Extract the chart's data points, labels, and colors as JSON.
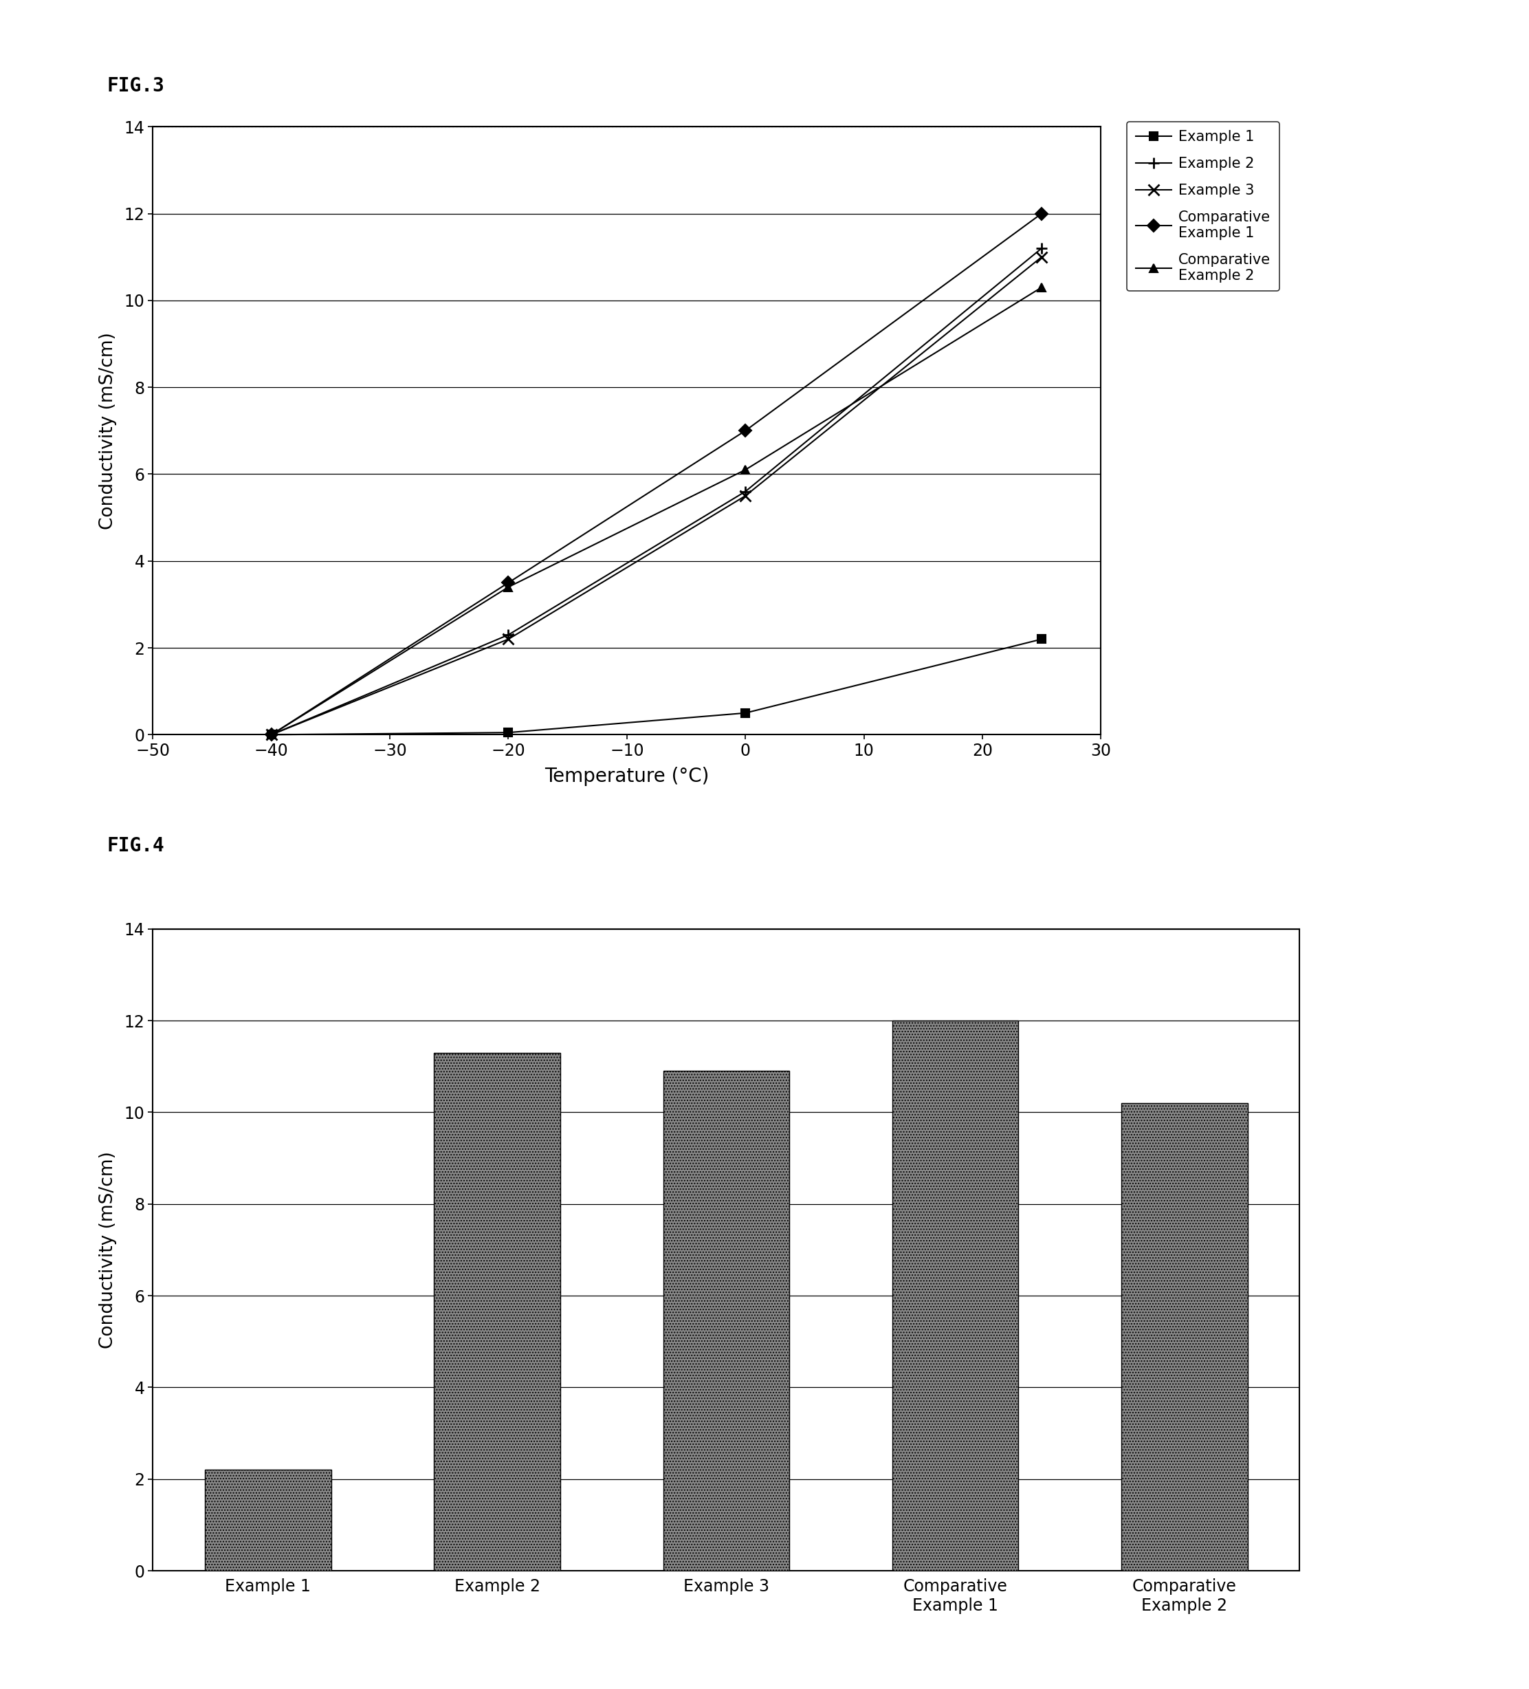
{
  "fig3": {
    "title": "FIG.3",
    "xlabel": "Temperature (°C)",
    "ylabel": "Conductivity (mS/cm)",
    "xlim": [
      -50,
      30
    ],
    "ylim": [
      0,
      14
    ],
    "xticks": [
      -50,
      -40,
      -30,
      -20,
      -10,
      0,
      10,
      20,
      30
    ],
    "yticks": [
      0,
      2,
      4,
      6,
      8,
      10,
      12,
      14
    ],
    "series": [
      {
        "label": "Example 1",
        "x": [
          -40,
          -20,
          0,
          25
        ],
        "y": [
          0,
          0.05,
          0.5,
          2.2
        ],
        "marker": "s",
        "markersize": 8,
        "color": "black",
        "linestyle": "-"
      },
      {
        "label": "Example 2",
        "x": [
          -40,
          -20,
          0,
          25
        ],
        "y": [
          0,
          2.3,
          5.6,
          11.2
        ],
        "marker": "+",
        "markersize": 12,
        "color": "black",
        "linestyle": "-"
      },
      {
        "label": "Example 3",
        "x": [
          -40,
          -20,
          0,
          25
        ],
        "y": [
          0,
          2.2,
          5.5,
          11.0
        ],
        "marker": "x",
        "markersize": 12,
        "color": "black",
        "linestyle": "-"
      },
      {
        "label": "Comparative\nExample 1",
        "x": [
          -40,
          -20,
          0,
          25
        ],
        "y": [
          0,
          3.5,
          7.0,
          12.0
        ],
        "marker": "D",
        "markersize": 9,
        "color": "black",
        "linestyle": "-"
      },
      {
        "label": "Comparative\nExample 2",
        "x": [
          -40,
          -20,
          0,
          25
        ],
        "y": [
          0,
          3.4,
          6.1,
          10.3
        ],
        "marker": "^",
        "markersize": 9,
        "color": "black",
        "linestyle": "-"
      }
    ]
  },
  "fig4": {
    "title": "FIG.4",
    "xlabel": "",
    "ylabel": "Conductivity (mS/cm)",
    "ylim": [
      0,
      14
    ],
    "yticks": [
      0,
      2,
      4,
      6,
      8,
      10,
      12,
      14
    ],
    "categories": [
      "Example 1",
      "Example 2",
      "Example 3",
      "Comparative\nExample 1",
      "Comparative\nExample 2"
    ],
    "values": [
      2.2,
      11.3,
      10.9,
      12.0,
      10.2
    ],
    "bar_color": "#888888",
    "bar_width": 0.55
  },
  "background_color": "#ffffff",
  "font_color": "#000000"
}
